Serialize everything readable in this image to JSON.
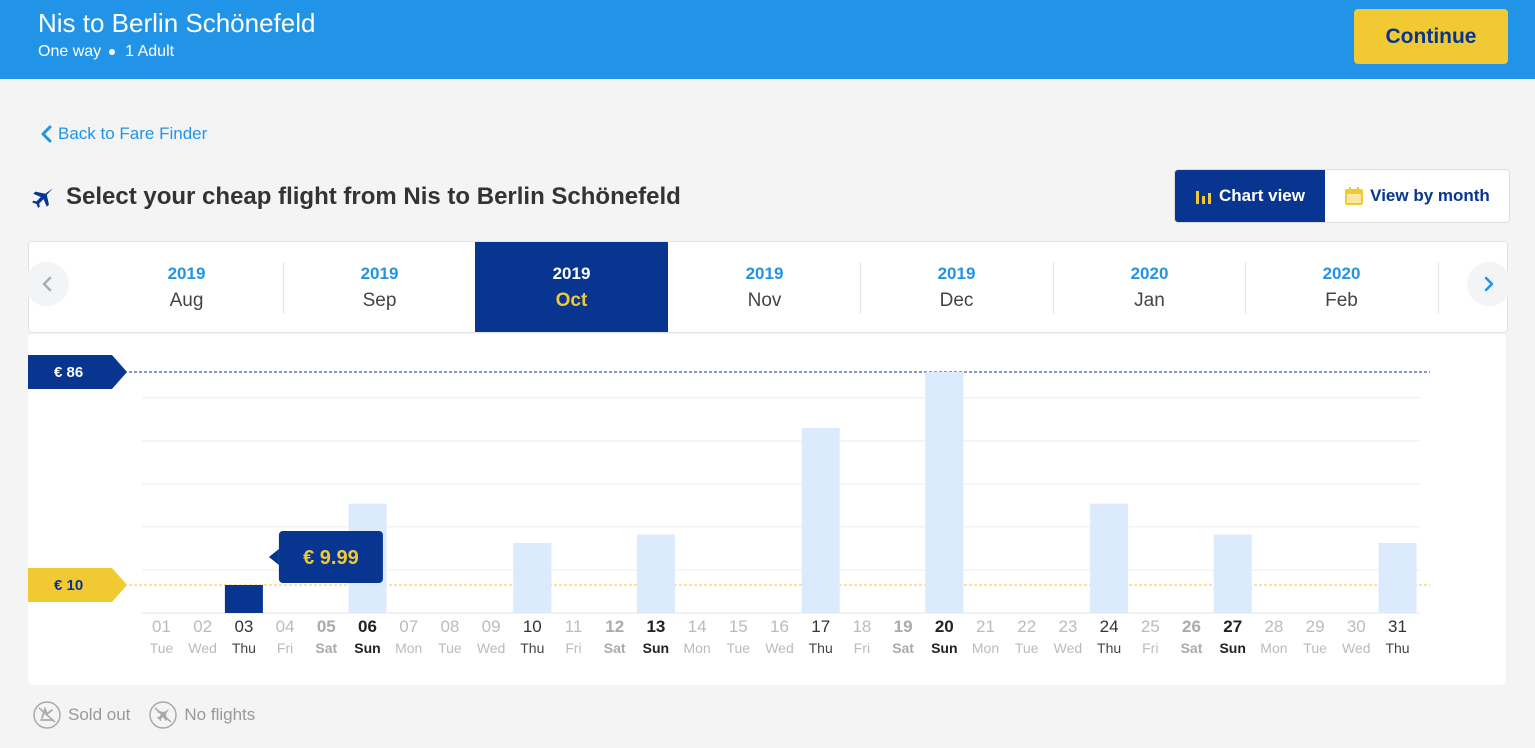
{
  "header": {
    "route": "Nis to Berlin Schönefeld",
    "trip_type": "One way",
    "passengers": "1 Adult",
    "continue_label": "Continue"
  },
  "nav": {
    "back_label": "Back to Fare Finder"
  },
  "page_title": "Select your cheap flight from Nis to Berlin Schönefeld",
  "view_toggle": {
    "chart_label": "Chart view",
    "month_label": "View by month",
    "active": "chart"
  },
  "months": [
    {
      "year": "2019",
      "month": "Aug"
    },
    {
      "year": "2019",
      "month": "Sep"
    },
    {
      "year": "2019",
      "month": "Oct",
      "active": true
    },
    {
      "year": "2019",
      "month": "Nov"
    },
    {
      "year": "2019",
      "month": "Dec"
    },
    {
      "year": "2020",
      "month": "Jan"
    },
    {
      "year": "2020",
      "month": "Feb"
    }
  ],
  "legend": {
    "sold_out": "Sold out",
    "no_flights": "No flights"
  },
  "colors": {
    "brand_blue": "#2294e8",
    "navy": "#073590",
    "yellow": "#f1c933",
    "bar_light": "#dbeafc"
  },
  "chart_data": {
    "type": "bar",
    "max_label": "€ 86",
    "min_label": "€ 10",
    "max_value": 86,
    "min_value": 10,
    "ylim": [
      0,
      86
    ],
    "selected_day": "03",
    "tooltip_label": "€ 9.99",
    "days": [
      {
        "d": "01",
        "w": "Tue",
        "price": null,
        "flight": false,
        "weekend": false
      },
      {
        "d": "02",
        "w": "Wed",
        "price": null,
        "flight": false,
        "weekend": false
      },
      {
        "d": "03",
        "w": "Thu",
        "price": 9.99,
        "flight": true,
        "weekend": false
      },
      {
        "d": "04",
        "w": "Fri",
        "price": null,
        "flight": false,
        "weekend": false
      },
      {
        "d": "05",
        "w": "Sat",
        "price": null,
        "flight": false,
        "weekend": true
      },
      {
        "d": "06",
        "w": "Sun",
        "price": 39,
        "flight": true,
        "weekend": true
      },
      {
        "d": "07",
        "w": "Mon",
        "price": null,
        "flight": false,
        "weekend": false
      },
      {
        "d": "08",
        "w": "Tue",
        "price": null,
        "flight": false,
        "weekend": false
      },
      {
        "d": "09",
        "w": "Wed",
        "price": null,
        "flight": false,
        "weekend": false
      },
      {
        "d": "10",
        "w": "Thu",
        "price": 25,
        "flight": true,
        "weekend": false
      },
      {
        "d": "11",
        "w": "Fri",
        "price": null,
        "flight": false,
        "weekend": false
      },
      {
        "d": "12",
        "w": "Sat",
        "price": null,
        "flight": false,
        "weekend": true
      },
      {
        "d": "13",
        "w": "Sun",
        "price": 28,
        "flight": true,
        "weekend": true
      },
      {
        "d": "14",
        "w": "Mon",
        "price": null,
        "flight": false,
        "weekend": false
      },
      {
        "d": "15",
        "w": "Tue",
        "price": null,
        "flight": false,
        "weekend": false
      },
      {
        "d": "16",
        "w": "Wed",
        "price": null,
        "flight": false,
        "weekend": false
      },
      {
        "d": "17",
        "w": "Thu",
        "price": 66,
        "flight": true,
        "weekend": false
      },
      {
        "d": "18",
        "w": "Fri",
        "price": null,
        "flight": false,
        "weekend": false
      },
      {
        "d": "19",
        "w": "Sat",
        "price": null,
        "flight": false,
        "weekend": true
      },
      {
        "d": "20",
        "w": "Sun",
        "price": 86,
        "flight": true,
        "weekend": true
      },
      {
        "d": "21",
        "w": "Mon",
        "price": null,
        "flight": false,
        "weekend": false
      },
      {
        "d": "22",
        "w": "Tue",
        "price": null,
        "flight": false,
        "weekend": false
      },
      {
        "d": "23",
        "w": "Wed",
        "price": null,
        "flight": false,
        "weekend": false
      },
      {
        "d": "24",
        "w": "Thu",
        "price": 39,
        "flight": true,
        "weekend": false
      },
      {
        "d": "25",
        "w": "Fri",
        "price": null,
        "flight": false,
        "weekend": false
      },
      {
        "d": "26",
        "w": "Sat",
        "price": null,
        "flight": false,
        "weekend": true
      },
      {
        "d": "27",
        "w": "Sun",
        "price": 28,
        "flight": true,
        "weekend": true
      },
      {
        "d": "28",
        "w": "Mon",
        "price": null,
        "flight": false,
        "weekend": false
      },
      {
        "d": "29",
        "w": "Tue",
        "price": null,
        "flight": false,
        "weekend": false
      },
      {
        "d": "30",
        "w": "Wed",
        "price": null,
        "flight": false,
        "weekend": false
      },
      {
        "d": "31",
        "w": "Thu",
        "price": 25,
        "flight": true,
        "weekend": false
      }
    ]
  }
}
